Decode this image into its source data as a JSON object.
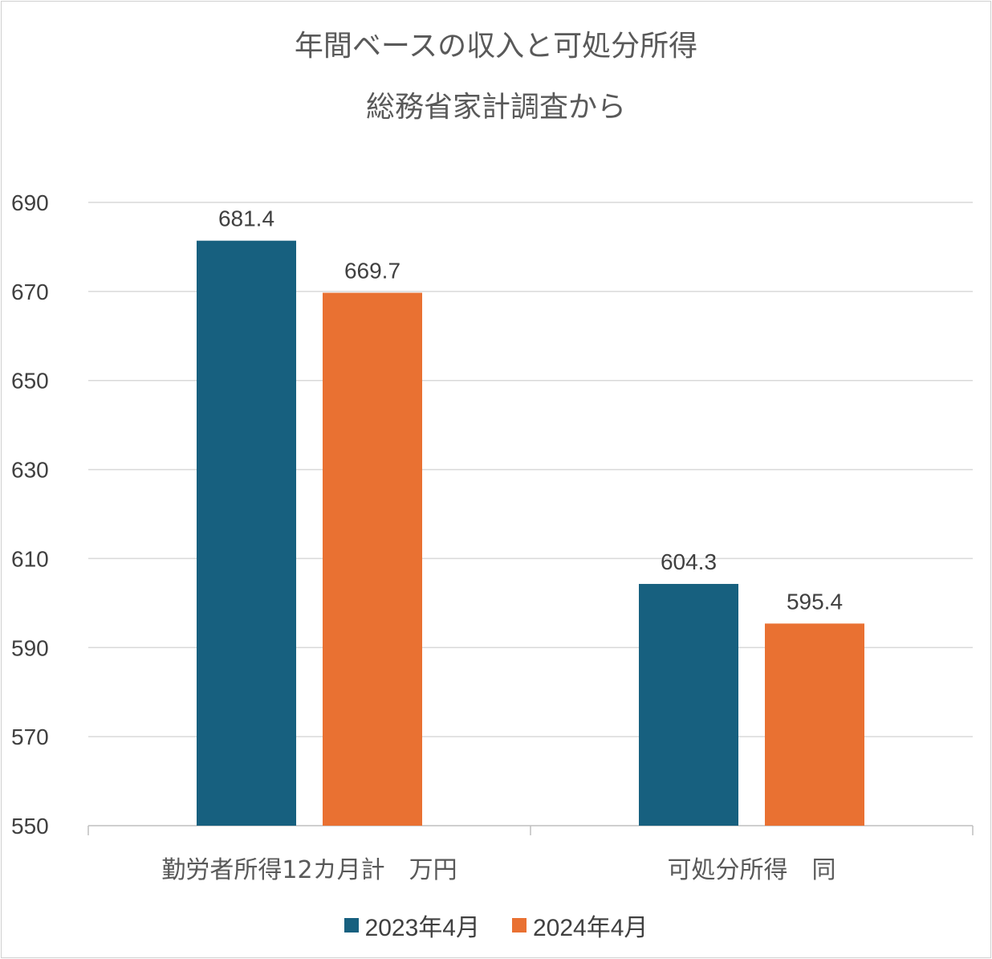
{
  "colors": {
    "series1": "#17607f",
    "series2": "#e97132",
    "grid": "#d9d9d9",
    "axis": "#bfbfbf",
    "text": "#404040"
  },
  "chart_data": {
    "type": "bar",
    "title": "年間ベースの収入と可処分所得",
    "subtitle": "総務省家計調査から",
    "categories": [
      "勤労者所得12カ月計　万円",
      "可処分所得　同"
    ],
    "series": [
      {
        "name": "2023年4月",
        "values": [
          681.4,
          604.3
        ],
        "color": "#17607f"
      },
      {
        "name": "2024年4月",
        "values": [
          669.7,
          595.4
        ],
        "color": "#e97132"
      }
    ],
    "data_labels": [
      [
        "681.4",
        "604.3"
      ],
      [
        "669.7",
        "595.4"
      ]
    ],
    "yticks": [
      "550",
      "570",
      "590",
      "610",
      "630",
      "650",
      "670",
      "690"
    ],
    "ylim": [
      550,
      690
    ],
    "grid": true,
    "legend": "bottom"
  }
}
